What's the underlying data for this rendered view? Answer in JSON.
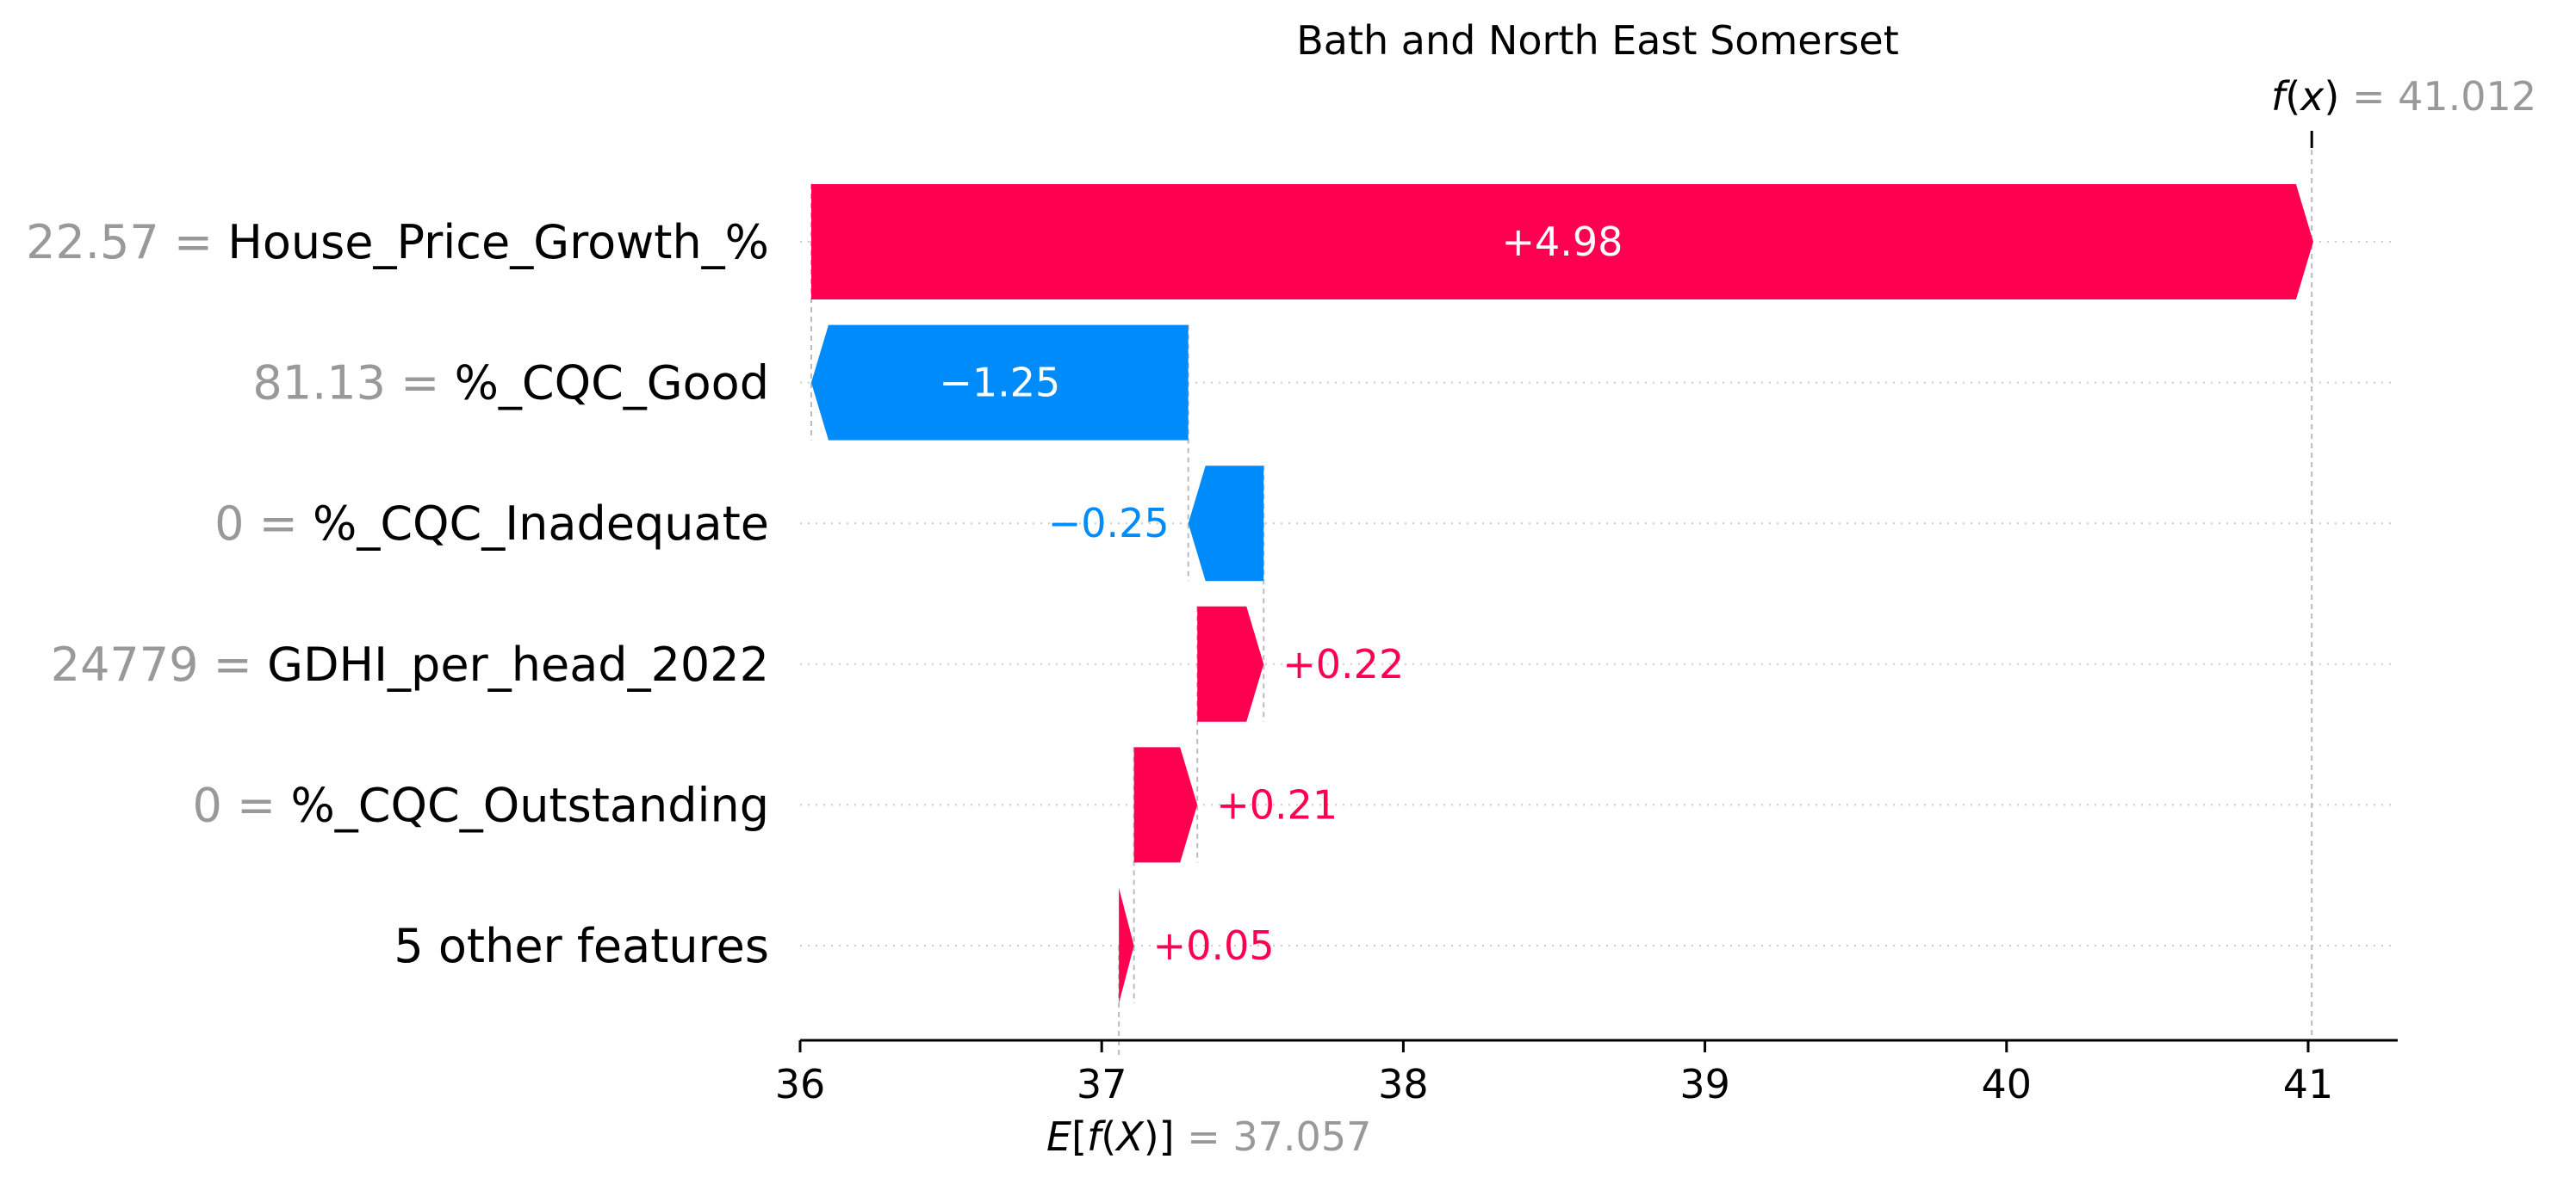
{
  "chart_data": {
    "type": "bar",
    "subtype": "waterfall",
    "title": "Bath and North East Somerset",
    "base_value": 37.057,
    "output_value": 41.012,
    "base_label_text": "E[f(X)] = 37.057",
    "output_label_text": "f(x) = 41.012",
    "xlim": [
      36,
      41.3
    ],
    "x_ticks": [
      "36",
      "37",
      "38",
      "39",
      "40",
      "41"
    ],
    "grid": "dotted horizontal row guides",
    "features": [
      {
        "value": "22.57",
        "name": "House_Price_Growth_%",
        "shap": 4.98,
        "label": "+4.98"
      },
      {
        "value": "81.13",
        "name": "%_CQC_Good",
        "shap": -1.25,
        "label": "−1.25"
      },
      {
        "value": "0",
        "name": "%_CQC_Inadequate",
        "shap": -0.25,
        "label": "−0.25"
      },
      {
        "value": "24779",
        "name": "GDHI_per_head_2022",
        "shap": 0.22,
        "label": "+0.22"
      },
      {
        "value": "0",
        "name": "%_CQC_Outstanding",
        "shap": 0.21,
        "label": "+0.21"
      },
      {
        "value": "",
        "name": "5 other features",
        "shap": 0.05,
        "label": "+0.05"
      }
    ],
    "colors": {
      "positive": "#ff0051",
      "negative": "#008bfb",
      "muted": "#999999",
      "axis": "#000000"
    }
  }
}
